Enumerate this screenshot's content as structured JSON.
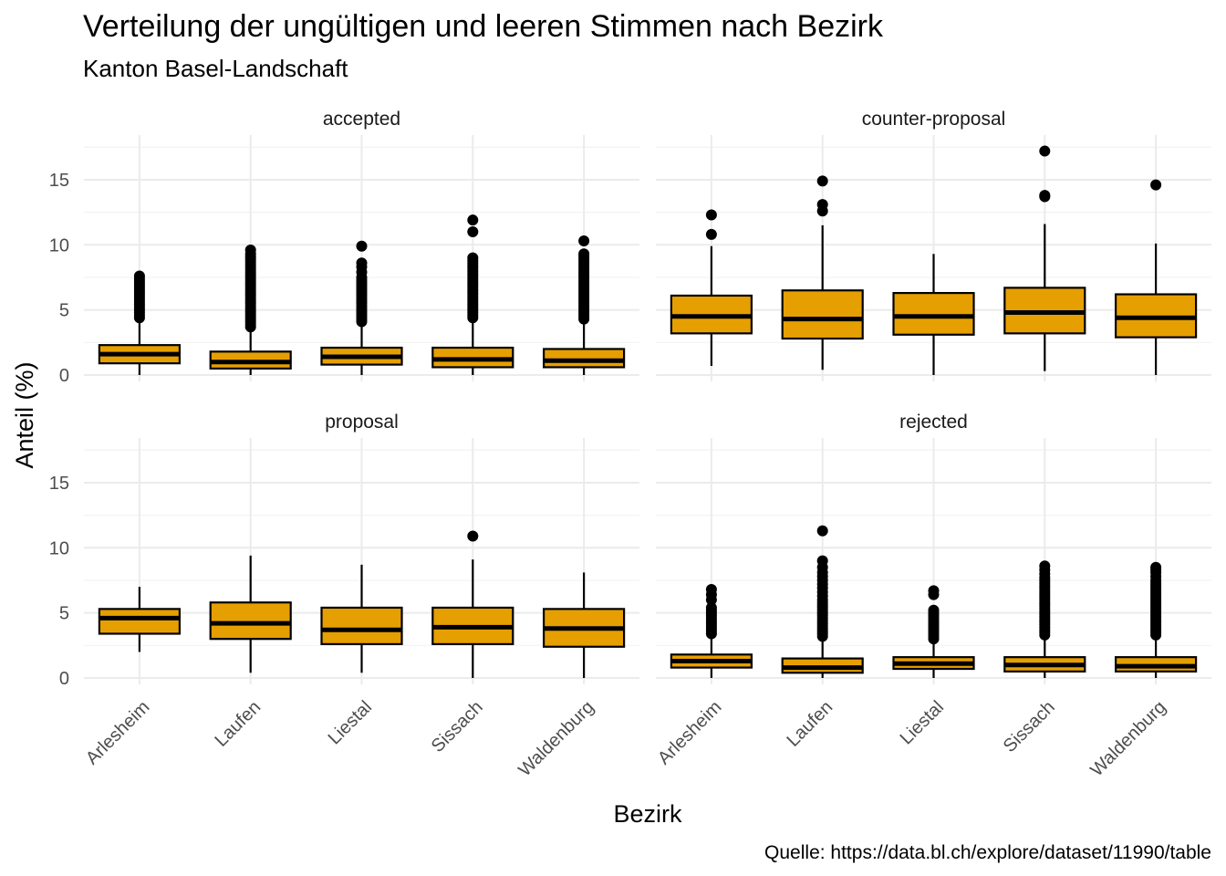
{
  "chart_data": {
    "type": "boxplot",
    "title": "Verteilung der ungültigen und leeren Stimmen nach Bezirk",
    "subtitle": "Kanton Basel-Landschaft",
    "xlabel": "Bezirk",
    "ylabel": "Anteil (%)",
    "caption": "Quelle: https://data.bl.ch/explore/dataset/11990/table",
    "ylim": [
      0,
      18
    ],
    "yticks": [
      0,
      5,
      10,
      15
    ],
    "grid": true,
    "box_fill": "#e69f00",
    "categories": [
      "Arlesheim",
      "Laufen",
      "Liestal",
      "Sissach",
      "Waldenburg"
    ],
    "facets": [
      {
        "name": "accepted",
        "boxes": [
          {
            "category": "Arlesheim",
            "min": 0,
            "q1": 0.9,
            "median": 1.6,
            "q3": 2.3,
            "max": 4.3,
            "outliers": [
              4.4,
              4.6,
              4.8,
              5.0,
              5.2,
              5.4,
              5.6,
              5.8,
              6.0,
              6.2,
              6.4,
              6.6,
              6.8,
              7.0,
              7.2,
              7.4,
              7.6
            ]
          },
          {
            "category": "Laufen",
            "min": 0,
            "q1": 0.5,
            "median": 1.0,
            "q3": 1.8,
            "max": 3.6,
            "outliers": [
              3.7,
              3.9,
              4.1,
              4.3,
              4.5,
              4.7,
              4.9,
              5.1,
              5.3,
              5.5,
              5.7,
              5.9,
              6.1,
              6.3,
              6.5,
              6.7,
              6.9,
              7.1,
              7.3,
              7.5,
              7.7,
              7.9,
              8.1,
              8.3,
              8.5,
              8.7,
              8.9,
              9.1,
              9.3,
              9.6
            ]
          },
          {
            "category": "Liestal",
            "min": 0,
            "q1": 0.8,
            "median": 1.4,
            "q3": 2.1,
            "max": 4.0,
            "outliers": [
              4.1,
              4.3,
              4.5,
              4.7,
              4.9,
              5.1,
              5.3,
              5.5,
              5.7,
              5.9,
              6.1,
              6.3,
              6.5,
              6.7,
              6.9,
              7.1,
              7.3,
              7.5,
              7.9,
              8.3,
              8.6,
              9.9
            ]
          },
          {
            "category": "Sissach",
            "min": 0,
            "q1": 0.6,
            "median": 1.2,
            "q3": 2.1,
            "max": 4.3,
            "outliers": [
              4.4,
              4.6,
              4.8,
              5.0,
              5.2,
              5.4,
              5.6,
              5.8,
              6.0,
              6.2,
              6.4,
              6.6,
              6.8,
              7.0,
              7.2,
              7.4,
              7.6,
              7.8,
              8.0,
              8.2,
              8.4,
              8.6,
              8.8,
              9.0,
              11.0,
              11.9
            ]
          },
          {
            "category": "Waldenburg",
            "min": 0,
            "q1": 0.6,
            "median": 1.1,
            "q3": 2.0,
            "max": 4.2,
            "outliers": [
              4.3,
              4.5,
              4.7,
              4.9,
              5.1,
              5.3,
              5.5,
              5.7,
              5.9,
              6.1,
              6.3,
              6.5,
              6.7,
              6.9,
              7.1,
              7.3,
              7.5,
              7.7,
              7.9,
              8.1,
              8.3,
              8.5,
              8.7,
              8.9,
              9.1,
              9.3,
              10.3
            ]
          }
        ]
      },
      {
        "name": "counter-proposal",
        "boxes": [
          {
            "category": "Arlesheim",
            "min": 0.7,
            "q1": 3.2,
            "median": 4.5,
            "q3": 6.1,
            "max": 9.9,
            "outliers": [
              10.8,
              12.3
            ]
          },
          {
            "category": "Laufen",
            "min": 0.4,
            "q1": 2.8,
            "median": 4.3,
            "q3": 6.5,
            "max": 11.5,
            "outliers": [
              12.6,
              13.1,
              14.9
            ]
          },
          {
            "category": "Liestal",
            "min": 0,
            "q1": 3.1,
            "median": 4.5,
            "q3": 6.3,
            "max": 9.3,
            "outliers": []
          },
          {
            "category": "Sissach",
            "min": 0.3,
            "q1": 3.2,
            "median": 4.8,
            "q3": 6.7,
            "max": 11.6,
            "outliers": [
              13.7,
              13.8,
              17.2
            ]
          },
          {
            "category": "Waldenburg",
            "min": 0,
            "q1": 2.9,
            "median": 4.4,
            "q3": 6.2,
            "max": 10.1,
            "outliers": [
              14.6
            ]
          }
        ]
      },
      {
        "name": "proposal",
        "boxes": [
          {
            "category": "Arlesheim",
            "min": 2.0,
            "q1": 3.4,
            "median": 4.6,
            "q3": 5.3,
            "max": 7.0,
            "outliers": []
          },
          {
            "category": "Laufen",
            "min": 0.4,
            "q1": 3.0,
            "median": 4.2,
            "q3": 5.8,
            "max": 9.4,
            "outliers": []
          },
          {
            "category": "Liestal",
            "min": 0.4,
            "q1": 2.6,
            "median": 3.7,
            "q3": 5.4,
            "max": 8.7,
            "outliers": []
          },
          {
            "category": "Sissach",
            "min": 0,
            "q1": 2.6,
            "median": 3.9,
            "q3": 5.4,
            "max": 9.1,
            "outliers": [
              10.9
            ]
          },
          {
            "category": "Waldenburg",
            "min": 0,
            "q1": 2.4,
            "median": 3.8,
            "q3": 5.3,
            "max": 8.1,
            "outliers": []
          }
        ]
      },
      {
        "name": "rejected",
        "boxes": [
          {
            "category": "Arlesheim",
            "min": 0,
            "q1": 0.8,
            "median": 1.3,
            "q3": 1.8,
            "max": 3.3,
            "outliers": [
              3.4,
              3.6,
              3.8,
              4.0,
              4.2,
              4.4,
              4.6,
              4.8,
              5.0,
              5.2,
              5.4,
              6.0,
              6.4,
              6.8
            ]
          },
          {
            "category": "Laufen",
            "min": 0,
            "q1": 0.4,
            "median": 0.8,
            "q3": 1.5,
            "max": 3.1,
            "outliers": [
              3.2,
              3.4,
              3.6,
              3.8,
              4.0,
              4.2,
              4.4,
              4.6,
              4.8,
              5.0,
              5.2,
              5.4,
              5.6,
              5.8,
              6.0,
              6.3,
              6.6,
              6.9,
              7.2,
              7.5,
              7.8,
              8.1,
              8.5,
              9.0,
              11.3
            ]
          },
          {
            "category": "Liestal",
            "min": 0,
            "q1": 0.7,
            "median": 1.1,
            "q3": 1.6,
            "max": 2.9,
            "outliers": [
              3.0,
              3.2,
              3.4,
              3.6,
              3.8,
              4.0,
              4.2,
              4.4,
              4.6,
              4.8,
              5.0,
              5.2,
              6.4,
              6.7
            ]
          },
          {
            "category": "Sissach",
            "min": 0,
            "q1": 0.5,
            "median": 1.0,
            "q3": 1.6,
            "max": 3.2,
            "outliers": [
              3.3,
              3.5,
              3.7,
              3.9,
              4.1,
              4.3,
              4.5,
              4.7,
              4.9,
              5.1,
              5.3,
              5.5,
              5.7,
              5.9,
              6.1,
              6.3,
              6.5,
              6.7,
              6.9,
              7.1,
              7.3,
              7.5,
              7.7,
              8.0,
              8.3,
              8.6
            ]
          },
          {
            "category": "Waldenburg",
            "min": 0,
            "q1": 0.5,
            "median": 0.9,
            "q3": 1.6,
            "max": 3.2,
            "outliers": [
              3.3,
              3.5,
              3.7,
              3.9,
              4.1,
              4.3,
              4.5,
              4.7,
              4.9,
              5.1,
              5.3,
              5.5,
              5.7,
              5.9,
              6.1,
              6.3,
              6.5,
              6.7,
              6.9,
              7.1,
              7.3,
              7.5,
              7.8,
              8.1,
              8.3,
              8.5
            ]
          }
        ]
      }
    ]
  }
}
